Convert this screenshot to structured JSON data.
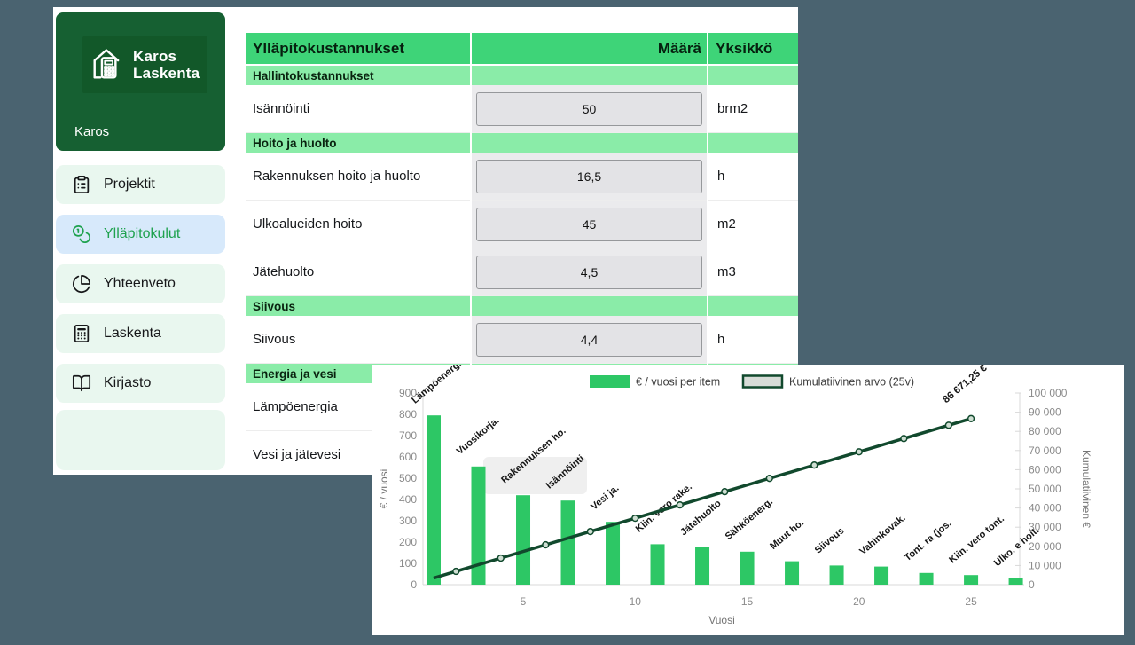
{
  "app": {
    "logo": {
      "line1": "Karos",
      "line2": "Laskenta",
      "subtitle": "Karos"
    },
    "sidebar": {
      "items": [
        {
          "key": "projektit",
          "label": "Projektit",
          "icon": "clipboard-icon",
          "active": false
        },
        {
          "key": "yllapitokulut",
          "label": "Ylläpitokulut",
          "icon": "coins-icon",
          "active": true
        },
        {
          "key": "yhteenveto",
          "label": "Yhteenveto",
          "icon": "pie-chart-icon",
          "active": false
        },
        {
          "key": "laskenta",
          "label": "Laskenta",
          "icon": "calculator-icon",
          "active": false
        },
        {
          "key": "kirjasto",
          "label": "Kirjasto",
          "icon": "book-open-icon",
          "active": false
        }
      ]
    },
    "table": {
      "header": {
        "title": "Ylläpitokustannukset",
        "amount": "Määrä",
        "unit": "Yksikkö"
      },
      "sections": [
        {
          "title": "Hallintokustannukset",
          "rows": [
            {
              "label": "Isännöinti",
              "value": "50",
              "unit": "brm2"
            }
          ]
        },
        {
          "title": "Hoito ja huolto",
          "rows": [
            {
              "label": "Rakennuksen hoito ja huolto",
              "value": "16,5",
              "unit": "h"
            },
            {
              "label": "Ulkoalueiden hoito",
              "value": "45",
              "unit": "m2"
            },
            {
              "label": "Jätehuolto",
              "value": "4,5",
              "unit": "m3"
            }
          ]
        },
        {
          "title": "Siivous",
          "rows": [
            {
              "label": "Siivous",
              "value": "4,4",
              "unit": "h"
            }
          ]
        },
        {
          "title": "Energia ja vesi",
          "rows": [
            {
              "label": "Lämpöenergia",
              "value": null,
              "unit": null
            },
            {
              "label": "Vesi ja jätevesi",
              "value": null,
              "unit": null
            }
          ]
        }
      ]
    }
  },
  "chart_data": {
    "type": "bar",
    "title": "",
    "xlabel": "Vuosi",
    "ylabel_left": "€ / vuosi",
    "ylabel_right": "Kumulatiivinen €",
    "legend": [
      {
        "label": "€ / vuosi per item",
        "swatch": "bar"
      },
      {
        "label": "Kumulatiivinen arvo (25v)",
        "swatch": "line"
      }
    ],
    "x_ticks": [
      5,
      10,
      15,
      20,
      25
    ],
    "y_left": {
      "min": 0,
      "max": 900,
      "step": 100
    },
    "y_right": {
      "min": 0,
      "max": 100000,
      "step": 10000
    },
    "bars": [
      {
        "x": 1,
        "label": "Lämpöenerg.",
        "value": 795
      },
      {
        "x": 3,
        "label": "Vuosikorja.",
        "value": 555
      },
      {
        "x": 5,
        "label": "Rakennuksen ho.",
        "value": 420
      },
      {
        "x": 7,
        "label": "Isännöinti",
        "value": 395
      },
      {
        "x": 9,
        "label": "Vesi ja.",
        "value": 295
      },
      {
        "x": 11,
        "label": "Kiin. vero rake.",
        "value": 190
      },
      {
        "x": 13,
        "label": "Jätehuolto",
        "value": 175
      },
      {
        "x": 15,
        "label": "Sähköenerg.",
        "value": 155
      },
      {
        "x": 17,
        "label": "Muut ho.",
        "value": 110
      },
      {
        "x": 19,
        "label": "Siivous",
        "value": 90
      },
      {
        "x": 21,
        "label": "Vahinkovak.",
        "value": 85
      },
      {
        "x": 23,
        "label": "Tont. ra (jos.",
        "value": 55
      },
      {
        "x": 25,
        "label": "Kiin. vero tont.",
        "value": 45
      },
      {
        "x": 27,
        "label": "Ulko. e hoit.",
        "value": 30
      }
    ],
    "line": {
      "name": "Kumulatiivinen arvo (25v)",
      "points": [
        {
          "x": 1,
          "y": 3466.85
        },
        {
          "x": 25,
          "y": 86671.25
        }
      ],
      "marker_xs": [
        2,
        4,
        6,
        8,
        10,
        12,
        14,
        16,
        18,
        20,
        22,
        24,
        25
      ],
      "annotation": "86 671,25 €"
    },
    "colors": {
      "bar": "#2dc765",
      "line": "#11492d",
      "marker_fill": "#cfdfd3",
      "tick": "#8b8b8b",
      "axis": "#d9d9d9",
      "legend_line_fill": "#d7dcd7"
    }
  }
}
